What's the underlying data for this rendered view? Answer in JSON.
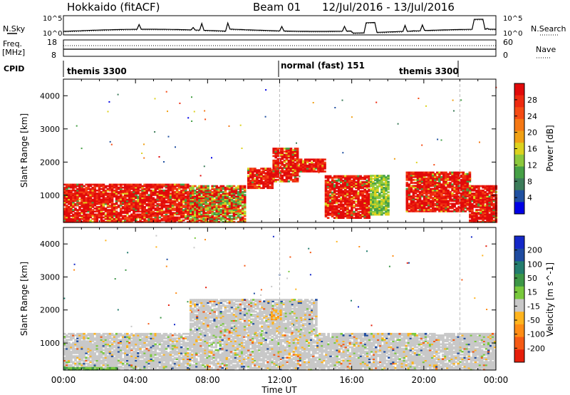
{
  "header": {
    "station": "Hokkaido (fitACF)",
    "beam": "Beam 01",
    "dates": "12/Jul/2016 - 13/Jul/2016"
  },
  "small_panels": {
    "nsky_label": "N.Sky",
    "nsearch_label": "N.Search",
    "noise_ticks_left": [
      "10^5",
      "10^0"
    ],
    "noise_ticks_right": [
      "10^5",
      "10^0"
    ],
    "freq_label_1": "Freq.",
    "freq_label_2": "[MHz]",
    "freq_ticks": [
      "18",
      "8"
    ],
    "nave_label": "Nave",
    "nave_ticks": [
      "60",
      "0"
    ],
    "cpid_label": "CPID"
  },
  "cpid_segments": [
    {
      "label": "themis 3300",
      "start": 0,
      "end": 12
    },
    {
      "label": "normal (fast) 151",
      "start": 12,
      "end": 22
    },
    {
      "label": "themis 3300",
      "start": 22,
      "end": 24
    }
  ],
  "axes": {
    "ylabel": "Slant Range [km]",
    "xlabel": "Time UT",
    "y_ticks": [
      "1000",
      "2000",
      "3000",
      "4000"
    ],
    "x_ticks": [
      "00:00",
      "04:00",
      "08:00",
      "12:00",
      "16:00",
      "20:00",
      "00:00"
    ]
  },
  "colorbars": {
    "power": {
      "label": "Power [dB]",
      "ticks": [
        "4",
        "8",
        "12",
        "16",
        "20",
        "24",
        "28"
      ],
      "colors": [
        "#0000e6",
        "#2050a0",
        "#3c7c5a",
        "#46a046",
        "#8cc83c",
        "#dcd21e",
        "#f0a014",
        "#f57814",
        "#f54b14",
        "#ee2a10",
        "#e10a0a"
      ]
    },
    "velocity": {
      "label": "Velocity [m s^-1]",
      "ticks": [
        "200",
        "100",
        "50",
        "15",
        "-15",
        "-50",
        "-100",
        "-200"
      ],
      "colors": [
        "#1428c8",
        "#1e4ba0",
        "#237d6e",
        "#3c9646",
        "#78c83c",
        "#c8c8c8",
        "#ffb41e",
        "#ff8c14",
        "#f55a14",
        "#e61e0a"
      ]
    }
  },
  "chart_data": [
    {
      "type": "heatmap",
      "title": "Power",
      "x": "time UT (hours)",
      "xlim": [
        0,
        24
      ],
      "ylim": [
        180,
        4500
      ],
      "regions": [
        {
          "t0": 0,
          "t1": 7.0,
          "r0": 180,
          "r1": 1350,
          "level": "high"
        },
        {
          "t0": 7.0,
          "t1": 10.0,
          "r0": 180,
          "r1": 1300,
          "level": "mixed"
        },
        {
          "t0": 10.2,
          "t1": 11.6,
          "r0": 1200,
          "r1": 1800,
          "level": "high"
        },
        {
          "t0": 11.6,
          "t1": 13.0,
          "r0": 1400,
          "r1": 2400,
          "level": "high"
        },
        {
          "t0": 13.0,
          "t1": 14.5,
          "r0": 1700,
          "r1": 2100,
          "level": "high"
        },
        {
          "t0": 14.5,
          "t1": 17.0,
          "r0": 300,
          "r1": 1600,
          "level": "high"
        },
        {
          "t0": 17.0,
          "t1": 18.0,
          "r0": 400,
          "r1": 1600,
          "level": "mid"
        },
        {
          "t0": 19.0,
          "t1": 22.5,
          "r0": 500,
          "r1": 1700,
          "level": "high"
        },
        {
          "t0": 22.5,
          "t1": 24.0,
          "r0": 180,
          "r1": 1300,
          "level": "high"
        }
      ]
    },
    {
      "type": "heatmap",
      "title": "Velocity",
      "x": "time UT (hours)",
      "xlim": [
        0,
        24
      ],
      "ylim": [
        180,
        4500
      ],
      "regions": [
        {
          "t0": 0,
          "t1": 24,
          "r0": 180,
          "r1": 1300,
          "level": "near-zero"
        },
        {
          "t0": 7,
          "t1": 14,
          "r0": 1300,
          "r1": 2300,
          "level": "near-zero"
        },
        {
          "t0": 11.5,
          "t1": 12.0,
          "r0": 1700,
          "r1": 2000,
          "level": "negative"
        },
        {
          "t0": 0,
          "t1": 3,
          "r0": 180,
          "r1": 260,
          "level": "positive"
        }
      ]
    }
  ]
}
